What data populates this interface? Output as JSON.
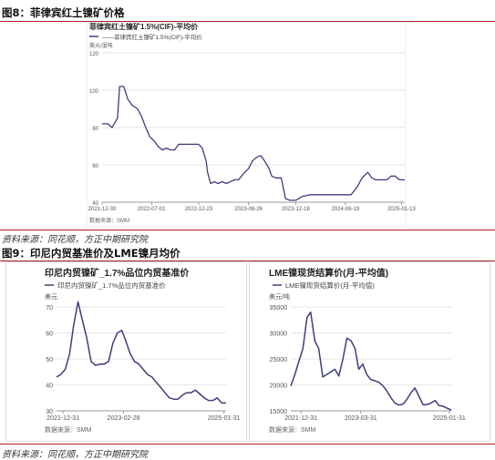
{
  "fig8": {
    "heading": "图8：菲律宾红土镍矿价格",
    "source": "资料来源：同花顺，方正中期研究院"
  },
  "fig9": {
    "heading": "图9：印尼内贸基准价及LME镍月均价",
    "source": "资料来源：同花顺，方正中期研究院"
  },
  "chart_data": [
    {
      "type": "line",
      "title": "菲律宾红土镍矿1.5%(CIF)-平均价",
      "unit": "美元/湿吨",
      "source_note": "数据来源：SMM",
      "legend": "——菲律宾红土镍矿1.5%(CIF)-平均价",
      "color": "#3d3f7c",
      "ylim": [
        40,
        120
      ],
      "yticks": [
        40,
        60,
        80,
        100,
        120
      ],
      "xticks": [
        "2021-12-30",
        "2022-07-01",
        "2022-12-23",
        "2023-06-26",
        "2023-12-18",
        "2024-06-19",
        "2025-01-13"
      ],
      "series": [
        {
          "x": [
            "2021-12-30",
            "2022-01-20",
            "2022-02-05",
            "2022-02-25",
            "2022-03-05",
            "2022-03-20",
            "2022-04-05",
            "2022-04-20",
            "2022-05-10",
            "2022-05-25",
            "2022-06-10",
            "2022-06-25",
            "2022-07-10",
            "2022-07-25",
            "2022-08-10",
            "2022-08-25",
            "2022-09-10",
            "2022-09-25",
            "2022-10-10",
            "2022-10-25",
            "2022-11-10",
            "2022-11-25",
            "2022-12-10",
            "2022-12-23",
            "2023-01-05",
            "2023-01-20",
            "2023-01-25",
            "2023-02-05",
            "2023-02-20",
            "2023-03-05",
            "2023-03-20",
            "2023-04-05",
            "2023-04-20",
            "2023-05-05",
            "2023-05-20",
            "2023-06-05",
            "2023-06-26",
            "2023-07-10",
            "2023-07-25",
            "2023-08-10",
            "2023-08-25",
            "2023-09-10",
            "2023-09-20",
            "2023-10-05",
            "2023-10-25",
            "2023-11-10",
            "2023-11-25",
            "2023-12-05",
            "2023-12-18",
            "2024-01-10",
            "2024-02-10",
            "2024-03-10",
            "2024-04-10",
            "2024-05-10",
            "2024-06-19",
            "2024-07-10",
            "2024-08-01",
            "2024-08-20",
            "2024-09-10",
            "2024-09-25",
            "2024-10-10",
            "2024-11-01",
            "2024-11-20",
            "2024-12-05",
            "2024-12-20",
            "2025-01-05",
            "2025-01-13",
            "2025-01-25"
          ],
          "y": [
            82,
            82,
            80,
            85,
            102,
            102,
            95,
            92,
            90,
            86,
            80,
            75,
            73,
            70,
            68,
            69,
            68,
            68,
            71,
            71,
            71,
            71,
            71,
            71,
            69,
            62,
            56,
            50,
            51,
            50,
            51,
            50,
            51,
            52,
            52,
            55,
            58,
            62,
            64,
            65,
            62,
            58,
            54,
            53,
            53,
            42,
            41,
            41,
            41,
            43,
            44,
            44,
            44,
            44,
            44,
            44,
            48,
            53,
            56,
            53,
            52,
            52,
            52,
            54,
            54,
            52,
            52,
            52
          ]
        }
      ]
    },
    {
      "type": "line",
      "title": "印尼内贸镍矿_1.7%品位内贸基准价",
      "legend": "印尼内贸镍矿_1.7%品位内贸基准价",
      "unit": "美元",
      "source_note": "数据来源：SMM",
      "color": "#3d3f7c",
      "ylim": [
        30,
        70
      ],
      "yticks": [
        30,
        40,
        50,
        60,
        70
      ],
      "xticks": [
        "2021-12-31",
        "2023-02-28",
        "2025-01-31"
      ],
      "series": [
        {
          "x": [
            "2021-11",
            "2021-12",
            "2022-01",
            "2022-02",
            "2022-03",
            "2022-04",
            "2022-05",
            "2022-06",
            "2022-07",
            "2022-08",
            "2022-09",
            "2022-10",
            "2022-11",
            "2022-12",
            "2023-01",
            "2023-02",
            "2023-03",
            "2023-04",
            "2023-05",
            "2023-06",
            "2023-07",
            "2023-08",
            "2023-09",
            "2023-10",
            "2023-11",
            "2023-12",
            "2024-01",
            "2024-02",
            "2024-03",
            "2024-04",
            "2024-05",
            "2024-06",
            "2024-07",
            "2024-08",
            "2024-09",
            "2024-10",
            "2024-11",
            "2024-12",
            "2025-01",
            "2025-02"
          ],
          "y": [
            43,
            44,
            46,
            52,
            63,
            72,
            65,
            58,
            49,
            47.5,
            48,
            48,
            49,
            56,
            60,
            61,
            57,
            52,
            49,
            48,
            46,
            44,
            43,
            41,
            39,
            37,
            35,
            34.5,
            34.5,
            36,
            37,
            37,
            38,
            36.5,
            35,
            34,
            34,
            35,
            33,
            33
          ]
        }
      ]
    },
    {
      "type": "line",
      "title": "LME镍现货结算价(月-平均值)",
      "legend": "LME镍现货结算价(月-平均值)",
      "unit": "美元/吨",
      "source_note": "数据来源：SMM",
      "color": "#3d3f7c",
      "ylim": [
        15000,
        35000
      ],
      "yticks": [
        15000,
        20000,
        25000,
        30000,
        35000
      ],
      "xticks": [
        "2021-12-31",
        "2023-03-31",
        "2025-01-31"
      ],
      "series": [
        {
          "x": [
            "2021-10",
            "2021-11",
            "2021-12",
            "2022-01",
            "2022-02",
            "2022-03",
            "2022-04",
            "2022-05",
            "2022-06",
            "2022-07",
            "2022-08",
            "2022-09",
            "2022-10",
            "2022-11",
            "2022-12",
            "2023-01",
            "2023-02",
            "2023-03",
            "2023-04",
            "2023-05",
            "2023-06",
            "2023-07",
            "2023-08",
            "2023-09",
            "2023-10",
            "2023-11",
            "2023-12",
            "2024-01",
            "2024-02",
            "2024-03",
            "2024-04",
            "2024-05",
            "2024-06",
            "2024-07",
            "2024-08",
            "2024-09",
            "2024-10",
            "2024-11",
            "2024-12",
            "2025-01",
            "2025-02"
          ],
          "y": [
            19800,
            22000,
            24500,
            27000,
            33000,
            34000,
            28500,
            27000,
            21500,
            22000,
            22500,
            23000,
            21700,
            25000,
            29000,
            28500,
            27000,
            23000,
            24000,
            22000,
            21000,
            20800,
            20500,
            19800,
            18800,
            17500,
            16500,
            16100,
            16300,
            17200,
            18500,
            19400,
            17800,
            16200,
            16200,
            16500,
            17000,
            16000,
            15900,
            15500,
            15200
          ]
        }
      ]
    }
  ]
}
